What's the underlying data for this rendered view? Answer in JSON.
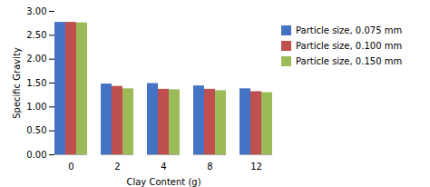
{
  "chart_data": {
    "type": "bar",
    "categories": [
      0,
      2,
      4,
      8,
      12
    ],
    "series": [
      {
        "name": "Particle size, 0.075 mm",
        "color": "#4472C4",
        "values": [
          2.77,
          1.48,
          1.49,
          1.44,
          1.38
        ]
      },
      {
        "name": "Particle size, 0.100 mm",
        "color": "#C0504D",
        "values": [
          2.77,
          1.43,
          1.37,
          1.37,
          1.32
        ]
      },
      {
        "name": "Particle size, 0.150 mm",
        "color": "#9BBB59",
        "values": [
          2.76,
          1.38,
          1.36,
          1.34,
          1.3
        ]
      }
    ],
    "xlabel": "Clay Content (g)",
    "ylabel": "Specific Gravity",
    "ylim": [
      0.0,
      3.0
    ],
    "yticks": [
      {
        "value": 0,
        "label": "0.00"
      },
      {
        "value": 0.5,
        "label": "0.50"
      },
      {
        "value": 1,
        "label": "1.00"
      },
      {
        "value": 1.5,
        "label": "1.50"
      },
      {
        "value": 2,
        "label": "2.00"
      },
      {
        "value": 2.5,
        "label": "2.50"
      },
      {
        "value": 3,
        "label": "3.00"
      }
    ],
    "grid": false,
    "legend": "right"
  }
}
